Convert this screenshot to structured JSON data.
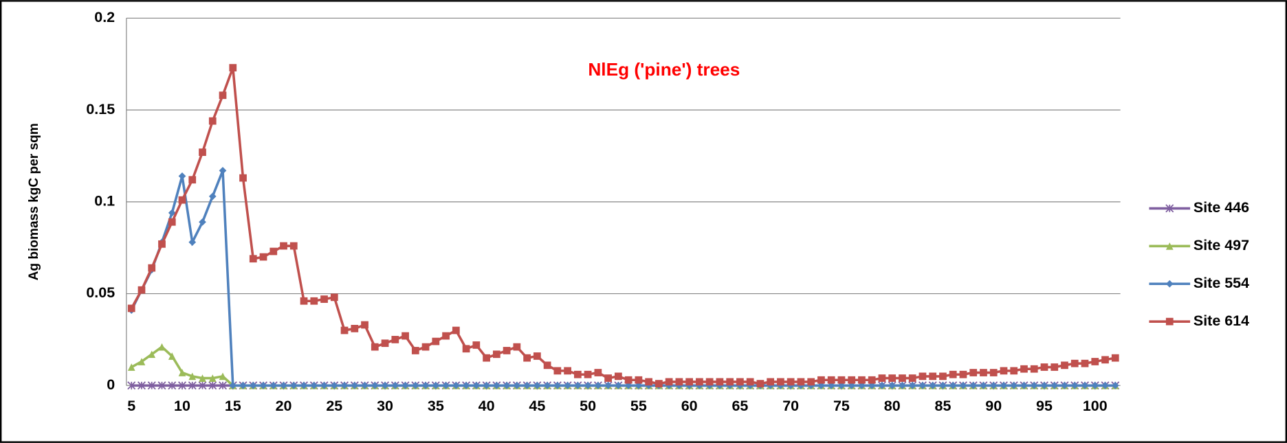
{
  "chart_data": {
    "type": "line",
    "title": "NlEg ('pine') trees",
    "y_label": "Ag biomass kgC per sqm",
    "x": [
      5,
      6,
      7,
      8,
      9,
      10,
      11,
      12,
      13,
      14,
      15,
      16,
      17,
      18,
      19,
      20,
      21,
      22,
      23,
      24,
      25,
      26,
      27,
      28,
      29,
      30,
      31,
      32,
      33,
      34,
      35,
      36,
      37,
      38,
      39,
      40,
      41,
      42,
      43,
      44,
      45,
      46,
      47,
      48,
      49,
      50,
      51,
      52,
      53,
      54,
      55,
      56,
      57,
      58,
      59,
      60,
      61,
      62,
      63,
      64,
      65,
      66,
      67,
      68,
      69,
      70,
      71,
      72,
      73,
      74,
      75,
      76,
      77,
      78,
      79,
      80,
      81,
      82,
      83,
      84,
      85,
      86,
      87,
      88,
      89,
      90,
      91,
      92,
      93,
      94,
      95,
      96,
      97,
      98,
      99,
      100,
      101,
      102
    ],
    "xlim": [
      4.5,
      102.5
    ],
    "xticks": [
      5,
      10,
      15,
      20,
      25,
      30,
      35,
      40,
      45,
      50,
      55,
      60,
      65,
      70,
      75,
      80,
      85,
      90,
      95,
      100
    ],
    "ylim": [
      0,
      0.2
    ],
    "yticks": [
      0,
      0.05,
      0.1,
      0.15,
      0.2
    ],
    "grid": true,
    "legend": "right",
    "series": [
      {
        "name": "Site 446",
        "color": "#7f5fa0",
        "marker": "star",
        "values": [
          0,
          0,
          0,
          0,
          0,
          0,
          0,
          0,
          0,
          0,
          0,
          0,
          0,
          0,
          0,
          0,
          0,
          0,
          0,
          0,
          0,
          0,
          0,
          0,
          0,
          0,
          0,
          0,
          0,
          0,
          0,
          0,
          0,
          0,
          0,
          0,
          0,
          0,
          0,
          0,
          0,
          0,
          0,
          0,
          0,
          0,
          0,
          0,
          0,
          0,
          0,
          0,
          0,
          0,
          0,
          0,
          0,
          0,
          0,
          0,
          0,
          0,
          0,
          0,
          0,
          0,
          0,
          0,
          0,
          0,
          0,
          0,
          0,
          0,
          0,
          0,
          0,
          0,
          0,
          0,
          0,
          0,
          0,
          0,
          0,
          0,
          0,
          0,
          0,
          0,
          0,
          0,
          0,
          0,
          0,
          0,
          0,
          0
        ]
      },
      {
        "name": "Site 497",
        "color": "#9bbb59",
        "marker": "triangle",
        "values": [
          0.01,
          0.013,
          0.017,
          0.021,
          0.016,
          0.007,
          0.005,
          0.004,
          0.004,
          0.005,
          0,
          0,
          0,
          0,
          0,
          0,
          0,
          0,
          0,
          0,
          0,
          0,
          0,
          0,
          0,
          0,
          0,
          0,
          0,
          0,
          0,
          0,
          0,
          0,
          0,
          0,
          0,
          0,
          0,
          0,
          0,
          0,
          0,
          0,
          0,
          0,
          0,
          0,
          0,
          0,
          0,
          0,
          0,
          0,
          0,
          0,
          0,
          0,
          0,
          0,
          0,
          0,
          0,
          0,
          0,
          0,
          0,
          0,
          0,
          0,
          0,
          0,
          0,
          0,
          0,
          0,
          0,
          0,
          0,
          0,
          0,
          0,
          0,
          0,
          0,
          0,
          0,
          0,
          0,
          0,
          0,
          0,
          0,
          0,
          0,
          0,
          0,
          0
        ]
      },
      {
        "name": "Site 554",
        "color": "#4f81bd",
        "marker": "diamond",
        "values": [
          0.041,
          0.052,
          0.063,
          0.078,
          0.094,
          0.114,
          0.078,
          0.089,
          0.103,
          0.117,
          0,
          0,
          0,
          0,
          0,
          0,
          0,
          0,
          0,
          0,
          0,
          0,
          0,
          0,
          0,
          0,
          0,
          0,
          0,
          0,
          0,
          0,
          0,
          0,
          0,
          0,
          0,
          0,
          0,
          0,
          0,
          0,
          0,
          0,
          0,
          0,
          0,
          0,
          0,
          0,
          0,
          0,
          0,
          0,
          0,
          0,
          0,
          0,
          0,
          0,
          0,
          0,
          0,
          0,
          0,
          0,
          0,
          0,
          0,
          0,
          0,
          0,
          0,
          0,
          0,
          0,
          0,
          0,
          0,
          0,
          0,
          0,
          0,
          0,
          0,
          0,
          0,
          0,
          0,
          0,
          0,
          0,
          0,
          0,
          0,
          0,
          0,
          0
        ]
      },
      {
        "name": "Site 614",
        "color": "#c0504d",
        "marker": "square",
        "values": [
          0.042,
          0.052,
          0.064,
          0.077,
          0.089,
          0.101,
          0.112,
          0.127,
          0.144,
          0.158,
          0.173,
          0.113,
          0.069,
          0.07,
          0.073,
          0.076,
          0.076,
          0.046,
          0.046,
          0.047,
          0.048,
          0.03,
          0.031,
          0.033,
          0.021,
          0.023,
          0.025,
          0.027,
          0.019,
          0.021,
          0.024,
          0.027,
          0.03,
          0.02,
          0.022,
          0.015,
          0.017,
          0.019,
          0.021,
          0.015,
          0.016,
          0.011,
          0.008,
          0.008,
          0.006,
          0.006,
          0.007,
          0.004,
          0.005,
          0.003,
          0.003,
          0.002,
          0.001,
          0.002,
          0.002,
          0.002,
          0.002,
          0.002,
          0.002,
          0.002,
          0.002,
          0.002,
          0.001,
          0.002,
          0.002,
          0.002,
          0.002,
          0.002,
          0.003,
          0.003,
          0.003,
          0.003,
          0.003,
          0.003,
          0.004,
          0.004,
          0.004,
          0.004,
          0.005,
          0.005,
          0.005,
          0.006,
          0.006,
          0.007,
          0.007,
          0.007,
          0.008,
          0.008,
          0.009,
          0.009,
          0.01,
          0.01,
          0.011,
          0.012,
          0.012,
          0.013,
          0.014,
          0.015
        ]
      }
    ]
  }
}
